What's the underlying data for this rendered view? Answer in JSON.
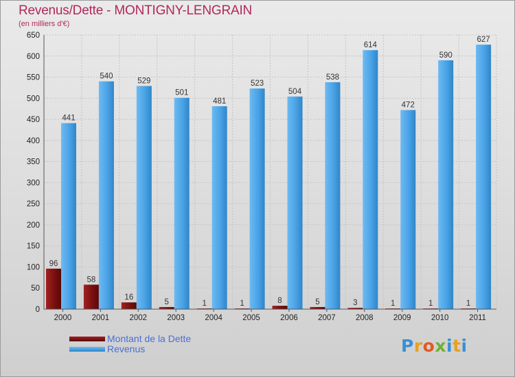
{
  "chart_data": {
    "type": "bar",
    "title": "Revenus/Dette - MONTIGNY-LENGRAIN",
    "subtitle": "(en milliers d'€)",
    "categories": [
      "2000",
      "2001",
      "2002",
      "2003",
      "2004",
      "2005",
      "2006",
      "2007",
      "2008",
      "2009",
      "2010",
      "2011"
    ],
    "series": [
      {
        "name": "Montant de la Dette",
        "color": "#7a1010",
        "values": [
          96,
          58,
          16,
          5,
          1,
          1,
          8,
          5,
          3,
          1,
          1,
          1
        ]
      },
      {
        "name": "Revenus",
        "color": "#4aa3e6",
        "values": [
          441,
          540,
          529,
          501,
          481,
          523,
          504,
          538,
          614,
          472,
          590,
          627
        ]
      }
    ],
    "ylim": [
      0,
      650
    ],
    "yticks": [
      0,
      50,
      100,
      150,
      200,
      250,
      300,
      350,
      400,
      450,
      500,
      550,
      600,
      650
    ],
    "grid": true,
    "legend": "bottom-left"
  },
  "logo": {
    "letters": [
      "P",
      "r",
      "o",
      "x",
      "i",
      "t",
      "i"
    ],
    "colors": [
      "#3a8fd6",
      "#e8a020",
      "#e05a20",
      "#70b030",
      "#3a8fd6",
      "#e8a020",
      "#3a8fd6"
    ]
  }
}
